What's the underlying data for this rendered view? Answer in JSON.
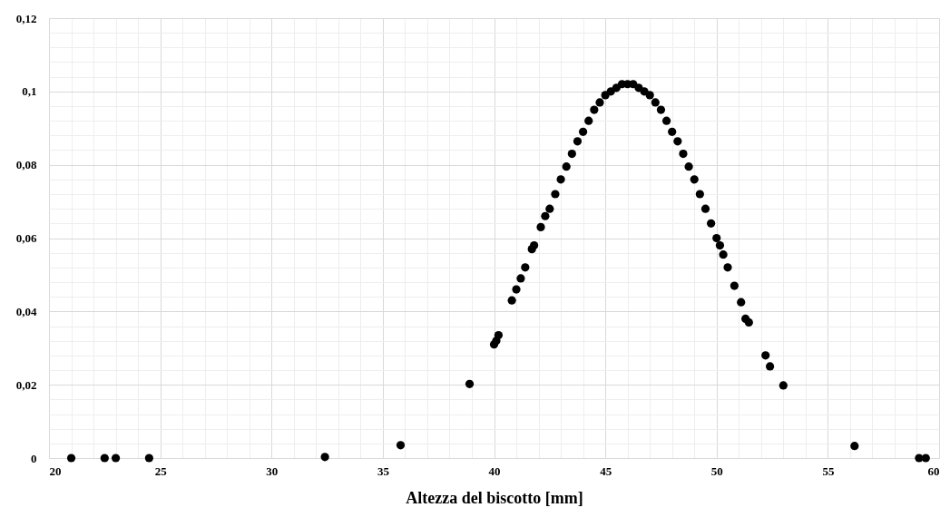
{
  "chart_data": {
    "type": "scatter",
    "xlabel": "Altezza del biscotto [mm]",
    "marker": "circle",
    "grid": true,
    "xlim": [
      20,
      60
    ],
    "ylim": [
      0,
      0.12
    ],
    "xticks": [
      20,
      {
        "value": 21,
        "label": null
      },
      {
        "value": 22,
        "label": null
      },
      {
        "value": 23,
        "label": null
      },
      {
        "value": 24,
        "label": null
      },
      25,
      {
        "value": 26,
        "label": null
      },
      {
        "value": 27,
        "label": null
      },
      {
        "value": 28,
        "label": null
      },
      {
        "value": 29,
        "label": null
      },
      30,
      {
        "value": 31,
        "label": null
      },
      {
        "value": 32,
        "label": null
      },
      {
        "value": 33,
        "label": null
      },
      {
        "value": 34,
        "label": null
      },
      35,
      {
        "value": 36,
        "label": null
      },
      {
        "value": 37,
        "label": null
      },
      {
        "value": 38,
        "label": null
      },
      {
        "value": 39,
        "label": null
      },
      40,
      {
        "value": 41,
        "label": null
      },
      {
        "value": 42,
        "label": null
      },
      {
        "value": 43,
        "label": null
      },
      {
        "value": 44,
        "label": null
      },
      45,
      {
        "value": 46,
        "label": null
      },
      {
        "value": 47,
        "label": null
      },
      {
        "value": 48,
        "label": null
      },
      {
        "value": 49,
        "label": null
      },
      50,
      {
        "value": 51,
        "label": null
      },
      {
        "value": 52,
        "label": null
      },
      {
        "value": 53,
        "label": null
      },
      {
        "value": 54,
        "label": null
      },
      55,
      {
        "value": 56,
        "label": null
      },
      {
        "value": 57,
        "label": null
      },
      {
        "value": 58,
        "label": null
      },
      {
        "value": 59,
        "label": null
      },
      60
    ],
    "yticks": [
      0,
      {
        "value": 0.004,
        "label": null
      },
      {
        "value": 0.008,
        "label": null
      },
      {
        "value": 0.012,
        "label": null
      },
      {
        "value": 0.016,
        "label": null
      },
      {
        "value": 0.02,
        "label": "0,02"
      },
      {
        "value": 0.024,
        "label": null
      },
      {
        "value": 0.028,
        "label": null
      },
      {
        "value": 0.032,
        "label": null
      },
      {
        "value": 0.036,
        "label": null
      },
      {
        "value": 0.04,
        "label": "0,04"
      },
      {
        "value": 0.044,
        "label": null
      },
      {
        "value": 0.048,
        "label": null
      },
      {
        "value": 0.052,
        "label": null
      },
      {
        "value": 0.056,
        "label": null
      },
      {
        "value": 0.06,
        "label": "0,06"
      },
      {
        "value": 0.064,
        "label": null
      },
      {
        "value": 0.068,
        "label": null
      },
      {
        "value": 0.072,
        "label": null
      },
      {
        "value": 0.076,
        "label": null
      },
      {
        "value": 0.08,
        "label": "0,08"
      },
      {
        "value": 0.084,
        "label": null
      },
      {
        "value": 0.088,
        "label": null
      },
      {
        "value": 0.092,
        "label": null
      },
      {
        "value": 0.096,
        "label": null
      },
      {
        "value": 0.1,
        "label": "0,1"
      },
      {
        "value": 0.104,
        "label": null
      },
      {
        "value": 0.108,
        "label": null
      },
      {
        "value": 0.112,
        "label": null
      },
      {
        "value": 0.116,
        "label": null
      },
      {
        "value": 0.12,
        "label": "0,12"
      }
    ],
    "x": [
      21,
      22.5,
      23,
      24.5,
      32.4,
      35.8,
      38.9,
      40.0,
      40.1,
      40.2,
      40.8,
      41.0,
      41.2,
      41.4,
      41.7,
      41.8,
      42.1,
      42.3,
      42.5,
      42.75,
      43,
      43.25,
      43.5,
      43.75,
      44,
      44.25,
      44.5,
      44.75,
      45,
      45.25,
      45.5,
      45.75,
      46,
      46.25,
      46.5,
      46.75,
      47,
      47.25,
      47.5,
      47.75,
      48,
      48.25,
      48.5,
      48.75,
      49,
      49.25,
      49.5,
      49.75,
      50,
      50.15,
      50.3,
      50.5,
      50.8,
      51.1,
      51.3,
      51.45,
      52.2,
      52.4,
      53,
      56.2,
      59.1,
      59.4
    ],
    "series": [
      {
        "color": "#000000",
        "values": [
          0,
          0,
          0,
          0,
          0.0003,
          0.0035,
          0.0202,
          0.031,
          0.032,
          0.0335,
          0.043,
          0.046,
          0.049,
          0.052,
          0.057,
          0.058,
          0.063,
          0.066,
          0.068,
          0.072,
          0.076,
          0.0795,
          0.083,
          0.0864,
          0.089,
          0.092,
          0.095,
          0.097,
          0.099,
          0.1,
          0.101,
          0.102,
          0.102,
          0.102,
          0.101,
          0.1,
          0.099,
          0.097,
          0.095,
          0.092,
          0.089,
          0.0864,
          0.083,
          0.0795,
          0.076,
          0.072,
          0.068,
          0.064,
          0.06,
          0.058,
          0.0555,
          0.052,
          0.047,
          0.0425,
          0.038,
          0.037,
          0.028,
          0.025,
          0.0198,
          0.0033,
          0,
          0
        ]
      }
    ]
  }
}
